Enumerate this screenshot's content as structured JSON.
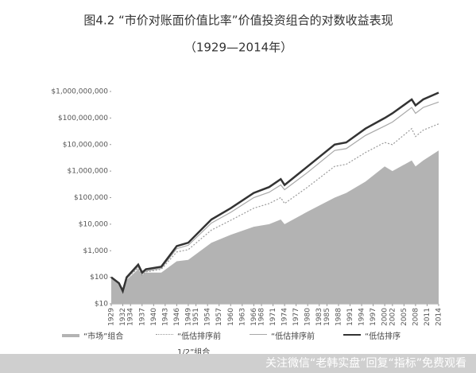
{
  "chart_data": {
    "type": "line",
    "title": "图4.2 “市价对账面价值比率”价值投资组合的对数收益表现",
    "subtitle": "（1929—2014年）",
    "x": [
      1929,
      1931,
      1932,
      1933,
      1936,
      1937,
      1938,
      1942,
      1946,
      1949,
      1955,
      1960,
      1966,
      1970,
      1973,
      1974,
      1980,
      1987,
      1990,
      1995,
      2000,
      2002,
      2007,
      2008,
      2010,
      2014
    ],
    "series": [
      {
        "name": "“市场”组合",
        "color": "#b3b3b3",
        "fill": true,
        "values": [
          100,
          60,
          40,
          80,
          200,
          120,
          150,
          150,
          400,
          450,
          2000,
          4000,
          8000,
          10000,
          15000,
          10000,
          30000,
          100000,
          150000,
          400000,
          1500000,
          1000000,
          2500000,
          1500000,
          2500000,
          6000000
        ]
      },
      {
        "name": "“低估排序前1/2”组合",
        "color": "#9a9a9a",
        "dashed": true,
        "values": [
          100,
          60,
          35,
          90,
          220,
          120,
          160,
          200,
          900,
          1100,
          6000,
          14000,
          40000,
          60000,
          100000,
          60000,
          250000,
          1500000,
          1800000,
          5000000,
          12000000,
          10000000,
          40000000,
          20000000,
          35000000,
          60000000
        ]
      },
      {
        "name": "“低估排序前",
        "color": "#a8a8a8",
        "values": [
          100,
          60,
          30,
          90,
          250,
          130,
          170,
          220,
          1200,
          1600,
          11000,
          28000,
          100000,
          160000,
          300000,
          200000,
          900000,
          6000000,
          7000000,
          22000000,
          50000000,
          70000000,
          250000000,
          150000000,
          250000000,
          400000000
        ]
      },
      {
        "name": "“低估排序",
        "color": "#333333",
        "width": 2.5,
        "values": [
          100,
          60,
          30,
          100,
          300,
          150,
          200,
          250,
          1500,
          2000,
          15000,
          40000,
          150000,
          250000,
          500000,
          300000,
          1500000,
          10000000,
          12000000,
          40000000,
          100000000,
          150000000,
          500000000,
          300000000,
          500000000,
          900000000
        ]
      }
    ],
    "xlim": [
      1929,
      2014
    ],
    "xticks": [
      1929,
      1932,
      1934,
      1937,
      1940,
      1943,
      1946,
      1949,
      1951,
      1954,
      1957,
      1960,
      1963,
      1966,
      1968,
      1971,
      1974,
      1977,
      1980,
      1983,
      1985,
      1988,
      1991,
      1994,
      1997,
      2000,
      2002,
      2005,
      2008,
      2011,
      2014
    ],
    "ylim": [
      10,
      1000000000
    ],
    "log_y": true,
    "yticks": [
      {
        "value": 10,
        "label": "$10"
      },
      {
        "value": 100,
        "label": "$100"
      },
      {
        "value": 1000,
        "label": "$1,000"
      },
      {
        "value": 10000,
        "label": "$10,000"
      },
      {
        "value": 100000,
        "label": "$100,000"
      },
      {
        "value": 1000000,
        "label": "$1,000,000"
      },
      {
        "value": 10000000,
        "label": "$10,000,000"
      },
      {
        "value": 100000000,
        "label": "$100,000,000"
      },
      {
        "value": 1000000000,
        "label": "$1,000,000,000"
      }
    ],
    "footer": "关注微信“老韩实盘”回复“指标”免费观看"
  }
}
